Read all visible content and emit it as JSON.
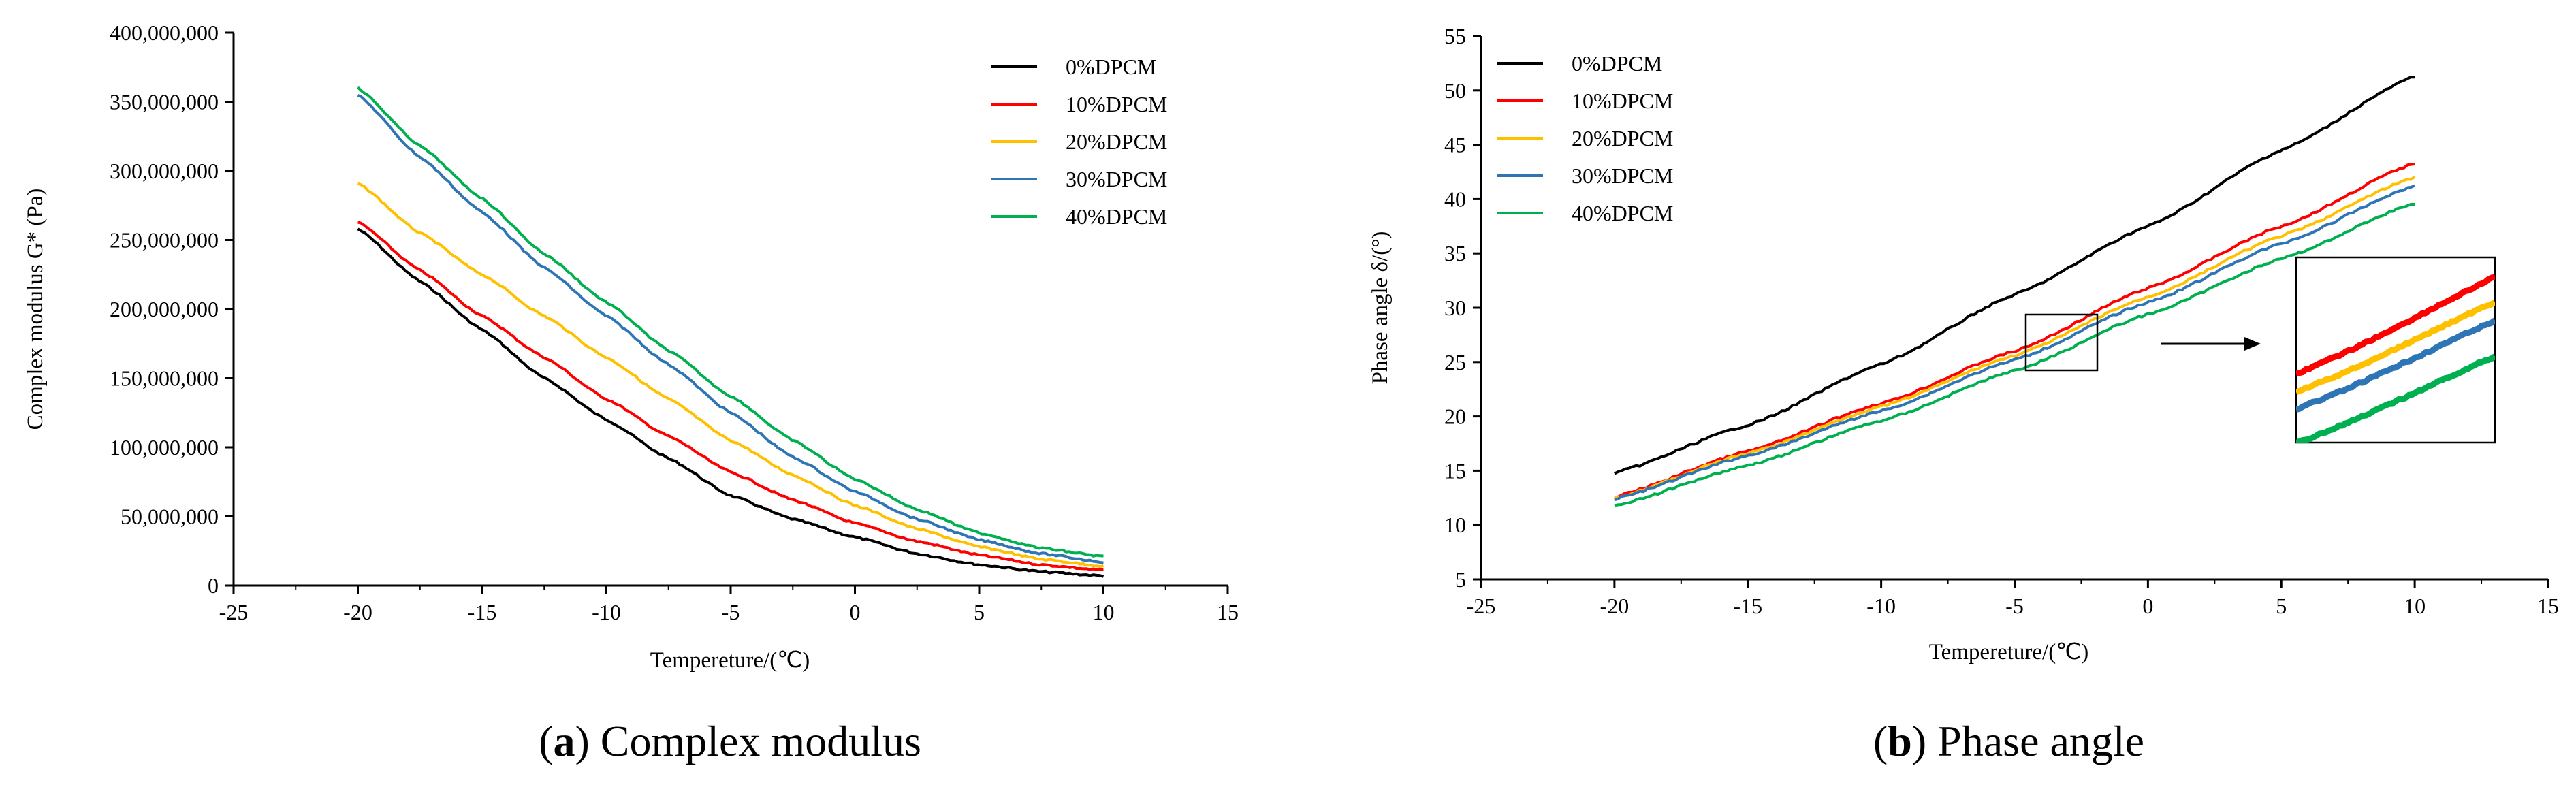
{
  "chart_data": [
    {
      "type": "line",
      "panel": "a",
      "caption_letter": "a",
      "caption_text": "Complex modulus",
      "xlabel": "Tempereture/(℃)",
      "ylabel": "Complex modulus G* (Pa)",
      "xlim": [
        -25,
        15
      ],
      "ylim": [
        0,
        400000000
      ],
      "xticks": [
        -25,
        -20,
        -15,
        -10,
        -5,
        0,
        5,
        10,
        15
      ],
      "xtick_labels": [
        "-25",
        "-20",
        "-15",
        "-10",
        "-5",
        "0",
        "5",
        "10",
        "15"
      ],
      "yticks": [
        0,
        50000000,
        100000000,
        150000000,
        200000000,
        250000000,
        300000000,
        350000000,
        400000000
      ],
      "ytick_labels": [
        "0",
        "50,000,000",
        "100,000,000",
        "150,000,000",
        "200,000,000",
        "250,000,000",
        "300,000,000",
        "350,000,000",
        "400,000,000"
      ],
      "legend_position": "top-right",
      "series": [
        {
          "name": "0%DPCM",
          "color": "#000000",
          "x": [
            -20,
            -17.5,
            -15,
            -12.5,
            -10,
            -7.5,
            -5,
            -2.5,
            0,
            2.5,
            5,
            7.5,
            10
          ],
          "values": [
            258000000,
            220000000,
            185000000,
            150000000,
            120000000,
            92000000,
            65000000,
            48000000,
            35000000,
            23000000,
            15000000,
            10000000,
            7000000
          ]
        },
        {
          "name": "10%DPCM",
          "color": "#ff0000",
          "x": [
            -20,
            -17.5,
            -15,
            -12.5,
            -10,
            -7.5,
            -5,
            -2.5,
            0,
            2.5,
            5,
            7.5,
            10
          ],
          "values": [
            263000000,
            228000000,
            195000000,
            165000000,
            135000000,
            108000000,
            82000000,
            62000000,
            45000000,
            32000000,
            22000000,
            15000000,
            11000000
          ]
        },
        {
          "name": "20%DPCM",
          "color": "#ffc000",
          "x": [
            -20,
            -17.5,
            -15,
            -12.5,
            -10,
            -7.5,
            -5,
            -2.5,
            0,
            2.5,
            5,
            7.5,
            10
          ],
          "values": [
            291000000,
            255000000,
            225000000,
            195000000,
            165000000,
            135000000,
            105000000,
            80000000,
            58000000,
            41000000,
            28000000,
            19000000,
            14000000
          ]
        },
        {
          "name": "30%DPCM",
          "color": "#2e75b6",
          "x": [
            -20,
            -17.5,
            -15,
            -12.5,
            -10,
            -7.5,
            -5,
            -2.5,
            0,
            2.5,
            5,
            7.5,
            10
          ],
          "values": [
            355000000,
            310000000,
            270000000,
            230000000,
            195000000,
            160000000,
            125000000,
            93000000,
            68000000,
            48000000,
            33000000,
            23000000,
            17000000
          ]
        },
        {
          "name": "40%DPCM",
          "color": "#00b050",
          "x": [
            -20,
            -17.5,
            -15,
            -12.5,
            -10,
            -7.5,
            -5,
            -2.5,
            0,
            2.5,
            5,
            7.5,
            10
          ],
          "values": [
            360000000,
            318000000,
            280000000,
            240000000,
            205000000,
            170000000,
            137000000,
            105000000,
            77000000,
            55000000,
            38000000,
            27000000,
            21000000
          ]
        }
      ]
    },
    {
      "type": "line",
      "panel": "b",
      "caption_letter": "b",
      "caption_text": "Phase angle",
      "xlabel": "Tempereture/(℃)",
      "ylabel": "Phase angle δ/(°)",
      "xlim": [
        -25,
        15
      ],
      "ylim": [
        5,
        55
      ],
      "xticks": [
        -25,
        -20,
        -15,
        -10,
        -5,
        0,
        5,
        10,
        15
      ],
      "xtick_labels": [
        "-25",
        "-20",
        "-15",
        "-10",
        "-5",
        "0",
        "5",
        "10",
        "15"
      ],
      "yticks": [
        5,
        10,
        15,
        20,
        25,
        30,
        35,
        40,
        45,
        50,
        55
      ],
      "ytick_labels": [
        "5",
        "10",
        "15",
        "20",
        "25",
        "30",
        "35",
        "40",
        "45",
        "50",
        "55"
      ],
      "legend_position": "top-left",
      "inset": {
        "x_range": [
          -4.3,
          -1.6
        ],
        "y_range": [
          24.5,
          29.4
        ],
        "description": "zoomed inset"
      },
      "series": [
        {
          "name": "0%DPCM",
          "color": "#000000",
          "x": [
            -20,
            -15,
            -10,
            -5,
            0,
            5,
            10
          ],
          "values": [
            14.8,
            19.2,
            24.8,
            31.2,
            37.5,
            44.5,
            51.3
          ]
        },
        {
          "name": "10%DPCM",
          "color": "#ff0000",
          "x": [
            -20,
            -15,
            -10,
            -5,
            0,
            5,
            10
          ],
          "values": [
            12.6,
            16.8,
            21.2,
            26.0,
            31.8,
            37.5,
            43.3
          ]
        },
        {
          "name": "20%DPCM",
          "color": "#ffc000",
          "x": [
            -20,
            -15,
            -10,
            -5,
            0,
            5,
            10
          ],
          "values": [
            12.5,
            16.6,
            20.9,
            25.6,
            31.0,
            36.6,
            42.0
          ]
        },
        {
          "name": "30%DPCM",
          "color": "#2e75b6",
          "x": [
            -20,
            -15,
            -10,
            -5,
            0,
            5,
            10
          ],
          "values": [
            12.4,
            16.4,
            20.5,
            25.2,
            30.5,
            35.9,
            41.2
          ]
        },
        {
          "name": "40%DPCM",
          "color": "#00b050",
          "x": [
            -20,
            -15,
            -10,
            -5,
            0,
            5,
            10
          ],
          "values": [
            11.8,
            15.5,
            19.6,
            24.2,
            29.4,
            34.5,
            39.6
          ]
        }
      ]
    }
  ]
}
